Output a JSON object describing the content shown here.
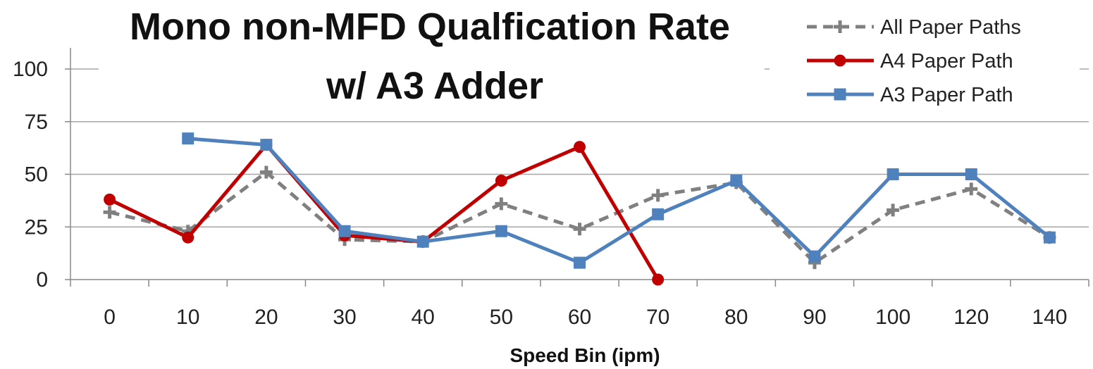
{
  "chart_data": {
    "type": "line",
    "title_lines": [
      "Mono non-MFD Qualfication Rate",
      "w/ A3 Adder"
    ],
    "xlabel": "Speed Bin (ipm)",
    "ylabel": "",
    "categories": [
      "0",
      "10",
      "20",
      "30",
      "40",
      "50",
      "60",
      "70",
      "80",
      "90",
      "100",
      "120",
      "140"
    ],
    "ylim": [
      0,
      100
    ],
    "yticks": [
      "0",
      "25",
      "50",
      "75",
      "100"
    ],
    "grid": "horizontal",
    "legend_position": "top-right",
    "series": [
      {
        "name": "All Paper Paths",
        "color": "#808080",
        "style": "dashed",
        "marker": "plus",
        "values": [
          32,
          23,
          51,
          19,
          18,
          36,
          24,
          40,
          46,
          8,
          33,
          43,
          20
        ]
      },
      {
        "name": "A4 Paper Path",
        "color": "#c00000",
        "style": "solid",
        "marker": "circle",
        "values": [
          38,
          20,
          64,
          21,
          18,
          47,
          63,
          0,
          null,
          null,
          null,
          null,
          null
        ]
      },
      {
        "name": "A3 Paper Path",
        "color": "#4f81bd",
        "style": "solid",
        "marker": "square",
        "values": [
          null,
          67,
          64,
          23,
          18,
          23,
          8,
          31,
          47,
          11,
          50,
          50,
          20
        ]
      }
    ]
  }
}
